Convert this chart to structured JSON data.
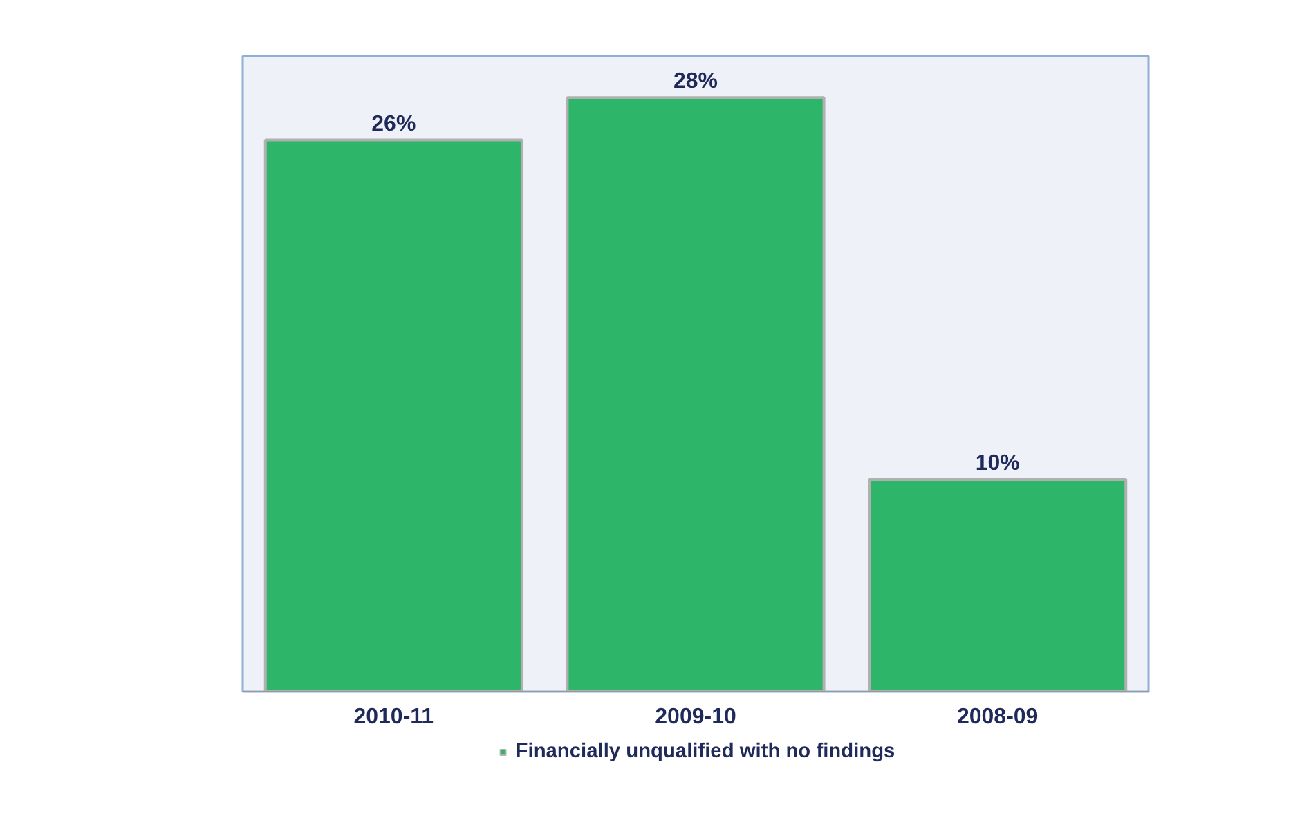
{
  "chart_data": {
    "type": "bar",
    "categories": [
      "2010-11",
      "2009-10",
      "2008-09"
    ],
    "series": [
      {
        "name": "Financially unqualified with no findings",
        "color": "#2db56a",
        "values": [
          26,
          28,
          10
        ],
        "value_labels": [
          "26%",
          "28%",
          "10%"
        ]
      }
    ],
    "grid": false,
    "legend": "bottom",
    "tick_labels": "x"
  }
}
